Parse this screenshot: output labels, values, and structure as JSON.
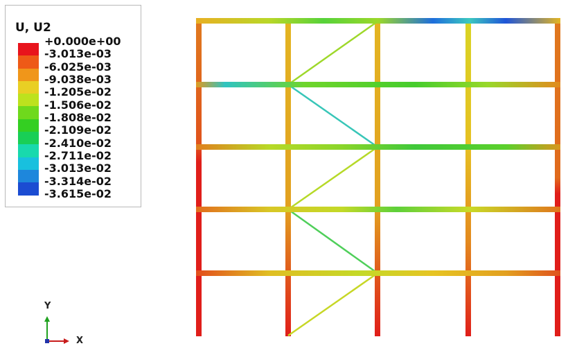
{
  "legend": {
    "title": "U, U2",
    "labels": [
      "+0.000e+00",
      "-3.013e-03",
      "-6.025e-03",
      "-9.038e-03",
      "-1.205e-02",
      "-1.506e-02",
      "-1.808e-02",
      "-2.109e-02",
      "-2.410e-02",
      "-2.711e-02",
      "-3.013e-02",
      "-3.314e-02",
      "-3.615e-02"
    ],
    "colors": [
      "#e8141c",
      "#ee5a17",
      "#f0961a",
      "#e9cf24",
      "#bde21e",
      "#6fd91c",
      "#34cf22",
      "#19cf56",
      "#18d9ad",
      "#18c0de",
      "#1e87dc",
      "#1b4cd2"
    ]
  },
  "triad": {
    "y_label": "Y",
    "x_label": "X"
  },
  "frame": {
    "column_colors": [
      "#e01e1a",
      "#d9741a",
      "#d88f1c",
      "#e6a020",
      "#e8b421",
      "#e9c422",
      "#dfb420",
      "#e03a1c"
    ],
    "beam_colors": [
      "#e7a622",
      "#8ad72b",
      "#7dd42c",
      "#57d22a",
      "#2488dc"
    ],
    "brace_color": "#b7d928"
  }
}
